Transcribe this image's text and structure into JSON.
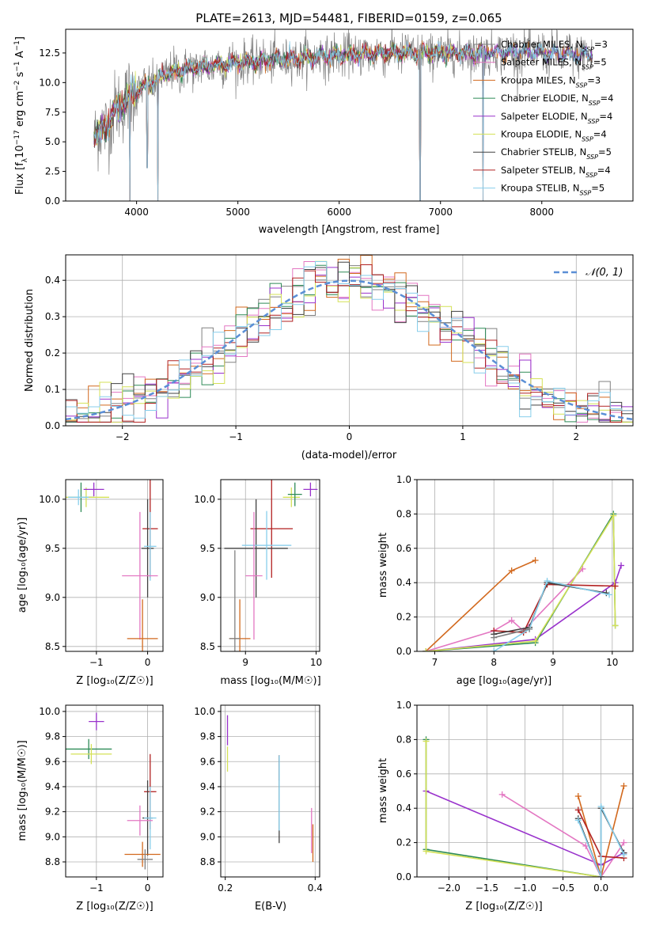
{
  "colors": {
    "Chabrier MILES": "#808080",
    "Salpeter MILES": "#e377c2",
    "Kroupa MILES": "#d2691e",
    "Chabrier ELODIE": "#2e8b57",
    "Salpeter ELODIE": "#9932cc",
    "Kroupa ELODIE": "#d4e157",
    "Chabrier STELIB": "#404040",
    "Salpeter STELIB": "#b22222",
    "Kroupa STELIB": "#87ceeb",
    "gaussian": "#5b8fd6"
  },
  "chart_data": [
    {
      "type": "line",
      "title": "PLATE=2613, MJD=54481, FIBERID=0159, z=0.065",
      "xlabel": "wavelength [Angstrom, rest frame]",
      "ylabel_parts": [
        "Flux [f",
        "λ",
        "10",
        "−17",
        " erg cm",
        "−2",
        " s",
        "−1",
        " A",
        "−1",
        "]"
      ],
      "xlim": [
        3300,
        8900
      ],
      "ylim": [
        0,
        14.5
      ],
      "xticks": [
        4000,
        5000,
        6000,
        7000,
        8000
      ],
      "xtick_labels": [
        "4000",
        "5000",
        "6000",
        "7000",
        "8000"
      ],
      "yticks": [
        0,
        2.5,
        5,
        7.5,
        10,
        12.5
      ],
      "ytick_labels": [
        "0.0",
        "2.5",
        "5.0",
        "7.5",
        "10.0",
        "12.5"
      ],
      "grid": false,
      "legend_position": "right",
      "legend": [
        {
          "model": "Chabrier MILES",
          "label": "Chabrier MILES, N",
          "sub": "SSP",
          "tail": "=3"
        },
        {
          "model": "Salpeter MILES",
          "label": "Salpeter MILES, N",
          "sub": "SSP",
          "tail": "=5"
        },
        {
          "model": "Kroupa MILES",
          "label": "Kroupa MILES, N",
          "sub": "SSP",
          "tail": "=3"
        },
        {
          "model": "Chabrier ELODIE",
          "label": "Chabrier ELODIE, N",
          "sub": "SSP",
          "tail": "=4"
        },
        {
          "model": "Salpeter ELODIE",
          "label": "Salpeter ELODIE, N",
          "sub": "SSP",
          "tail": "=4"
        },
        {
          "model": "Kroupa ELODIE",
          "label": "Kroupa ELODIE, N",
          "sub": "SSP",
          "tail": "=4"
        },
        {
          "model": "Chabrier STELIB",
          "label": "Chabrier STELIB, N",
          "sub": "SSP",
          "tail": "=5"
        },
        {
          "model": "Salpeter STELIB",
          "label": "Salpeter STELIB, N",
          "sub": "SSP",
          "tail": "=4"
        },
        {
          "model": "Kroupa STELIB",
          "label": "Kroupa STELIB, N",
          "sub": "SSP",
          "tail": "=5"
        }
      ],
      "continuum": {
        "x": [
          3580,
          3700,
          3800,
          3950,
          4100,
          4300,
          4600,
          5000,
          5500,
          6000,
          6500,
          7000,
          7400,
          7700,
          8000,
          8500
        ],
        "y": [
          5.5,
          6.3,
          7.8,
          9.0,
          9.8,
          10.8,
          11.3,
          11.7,
          12.0,
          12.3,
          12.5,
          12.5,
          12.5,
          12.6,
          12.5,
          12.3
        ]
      },
      "absorption_features": [
        {
          "x": 3934,
          "depth_to": 0.0
        },
        {
          "x": 4210,
          "depth_to": 0.0
        },
        {
          "x": 6800,
          "depth_to": 0.0
        },
        {
          "x": 7420,
          "depth_to": 0.0
        },
        {
          "x": 4105,
          "depth_to": 2.8
        }
      ]
    },
    {
      "type": "bar",
      "xlabel": "(data-model)/error",
      "ylabel": "Normed distribution",
      "xlim": [
        -2.5,
        2.5
      ],
      "ylim": [
        0,
        0.47
      ],
      "xticks": [
        -2,
        -1,
        0,
        1,
        2
      ],
      "xtick_labels": [
        "−2",
        "−1",
        "0",
        "1",
        "2"
      ],
      "yticks": [
        0,
        0.1,
        0.2,
        0.3,
        0.4
      ],
      "ytick_labels": [
        "0.0",
        "0.1",
        "0.2",
        "0.3",
        "0.4"
      ],
      "grid": true,
      "legend_position": "top-right",
      "legend_label": "𝒩(0, 1)",
      "bin_width": 0.1,
      "bin_start": -2.5,
      "histogram_model_order": [
        "Chabrier MILES",
        "Salpeter MILES",
        "Kroupa MILES",
        "Chabrier ELODIE",
        "Salpeter ELODIE",
        "Kroupa ELODIE",
        "Chabrier STELIB",
        "Salpeter STELIB",
        "Kroupa STELIB"
      ]
    },
    {
      "type": "scatter",
      "xlabel": "Z [log₁₀(Z/Z☉)]",
      "ylabel": "age  [log₁₀(age/yr)]",
      "xlim": [
        -1.6,
        0.3
      ],
      "ylim": [
        8.45,
        10.2
      ],
      "xticks": [
        -1,
        0
      ],
      "xtick_labels": [
        "−1",
        "0"
      ],
      "yticks": [
        8.5,
        9.0,
        9.5,
        10.0
      ],
      "ytick_labels": [
        "8.5",
        "9.0",
        "9.5",
        "10.0"
      ],
      "grid": true,
      "points": [
        {
          "model": "Chabrier ELODIE",
          "x": -1.3,
          "y": 10.02,
          "xerr": 0.25,
          "yerr": 0.15
        },
        {
          "model": "Kroupa ELODIE",
          "x": -1.2,
          "y": 10.02,
          "xerr": 0.45,
          "yerr": 0.1
        },
        {
          "model": "Salpeter ELODIE",
          "x": -1.05,
          "y": 10.1,
          "xerr": 0.2,
          "yerr": 0.07
        },
        {
          "model": "Kroupa STELIB",
          "x": -1.35,
          "y": 10.02,
          "xerr": 0.2,
          "yerr": 0.08
        },
        {
          "model": "Salpeter STELIB",
          "x": 0.05,
          "y": 9.7,
          "xerr": 0.15,
          "yerr": 0.5
        },
        {
          "model": "Chabrier STELIB",
          "x": 0.0,
          "y": 9.5,
          "xerr": 0.12,
          "yerr": 0.5
        },
        {
          "model": "Kroupa STELIB",
          "x": 0.05,
          "y": 9.52,
          "xerr": 0.12,
          "yerr": 0.35
        },
        {
          "model": "Salpeter MILES",
          "x": -0.15,
          "y": 9.22,
          "xerr": 0.35,
          "yerr": 0.65
        },
        {
          "model": "Kroupa MILES",
          "x": -0.1,
          "y": 8.58,
          "xerr": 0.3,
          "yerr": 0.4
        }
      ]
    },
    {
      "type": "scatter",
      "xlabel": "mass [log₁₀(M/M☉)]",
      "ylabel": "",
      "xlim": [
        8.65,
        10.05
      ],
      "ylim": [
        8.45,
        10.2
      ],
      "xticks": [
        9,
        10
      ],
      "xtick_labels": [
        "9",
        "10"
      ],
      "yticks": [
        8.5,
        9.0,
        9.5,
        10.0
      ],
      "ytick_labels": [
        "8.5",
        "9.0",
        "9.5",
        "10.0"
      ],
      "grid": true,
      "points": [
        {
          "model": "Kroupa ELODIE",
          "x": 9.65,
          "y": 10.02,
          "xerr": 0.12,
          "yerr": 0.1
        },
        {
          "model": "Chabrier ELODIE",
          "x": 9.7,
          "y": 10.05,
          "xerr": 0.1,
          "yerr": 0.12
        },
        {
          "model": "Salpeter ELODIE",
          "x": 9.92,
          "y": 10.1,
          "xerr": 0.1,
          "yerr": 0.07
        },
        {
          "model": "Salpeter STELIB",
          "x": 9.37,
          "y": 9.7,
          "xerr": 0.3,
          "yerr": 0.5
        },
        {
          "model": "Chabrier STELIB",
          "x": 9.15,
          "y": 9.5,
          "xerr": 0.45,
          "yerr": 0.5
        },
        {
          "model": "Kroupa STELIB",
          "x": 9.3,
          "y": 9.53,
          "xerr": 0.35,
          "yerr": 0.35
        },
        {
          "model": "Salpeter MILES",
          "x": 9.12,
          "y": 9.22,
          "xerr": 0.12,
          "yerr": 0.65
        },
        {
          "model": "Kroupa MILES",
          "x": 8.92,
          "y": 8.58,
          "xerr": 0.15,
          "yerr": 0.4
        },
        {
          "model": "Chabrier MILES",
          "x": 8.85,
          "y": 8.58,
          "xerr": 0.08,
          "yerr": 0.9
        }
      ]
    },
    {
      "type": "line",
      "xlabel": "age  [log₁₀(age/yr)]",
      "ylabel": "mass weight",
      "xlim": [
        6.7,
        10.35
      ],
      "ylim": [
        0,
        1.0
      ],
      "xticks": [
        7,
        8,
        9,
        10
      ],
      "xtick_labels": [
        "7",
        "8",
        "9",
        "10"
      ],
      "yticks": [
        0,
        0.2,
        0.4,
        0.6,
        0.8,
        1.0
      ],
      "ytick_labels": [
        "0.0",
        "0.2",
        "0.4",
        "0.6",
        "0.8",
        "1.0"
      ],
      "grid": true,
      "series": [
        {
          "model": "Kroupa MILES",
          "x": [
            6.85,
            8.3,
            8.7
          ],
          "y": [
            0.0,
            0.47,
            0.53
          ]
        },
        {
          "model": "Salpeter MILES",
          "x": [
            6.85,
            8.0,
            8.3,
            8.5,
            9.5
          ],
          "y": [
            0.0,
            0.12,
            0.18,
            0.12,
            0.48
          ]
        },
        {
          "model": "Salpeter ELODIE",
          "x": [
            6.85,
            8.7,
            10.05,
            10.15
          ],
          "y": [
            0.0,
            0.07,
            0.4,
            0.5
          ]
        },
        {
          "model": "Chabrier ELODIE",
          "x": [
            6.85,
            8.7,
            10.02,
            10.05
          ],
          "y": [
            0.0,
            0.05,
            0.8,
            0.15
          ]
        },
        {
          "model": "Kroupa ELODIE",
          "x": [
            6.85,
            8.7,
            10.02,
            10.05
          ],
          "y": [
            0.0,
            0.06,
            0.79,
            0.15
          ]
        },
        {
          "model": "Salpeter STELIB",
          "x": [
            8.0,
            8.5,
            8.9,
            10.05
          ],
          "y": [
            0.12,
            0.11,
            0.39,
            0.38
          ]
        },
        {
          "model": "Chabrier STELIB",
          "x": [
            8.0,
            8.6,
            8.9,
            9.9
          ],
          "y": [
            0.1,
            0.14,
            0.4,
            0.34
          ]
        },
        {
          "model": "Kroupa STELIB",
          "x": [
            8.0,
            8.6,
            8.9,
            9.95
          ],
          "y": [
            0.0,
            0.13,
            0.41,
            0.33
          ]
        },
        {
          "model": "Chabrier MILES",
          "x": [
            8.0,
            8.6
          ],
          "y": [
            0.08,
            0.13
          ]
        }
      ]
    },
    {
      "type": "scatter",
      "xlabel": "Z [log₁₀(Z/Z☉)]",
      "ylabel": "mass [log₁₀(M/M☉)]",
      "xlim": [
        -1.6,
        0.3
      ],
      "ylim": [
        8.68,
        10.05
      ],
      "xticks": [
        -1,
        0
      ],
      "xtick_labels": [
        "−1",
        "0"
      ],
      "yticks": [
        8.8,
        9.0,
        9.2,
        9.4,
        9.6,
        9.8,
        10.0
      ],
      "ytick_labels": [
        "8.8",
        "9.0",
        "9.2",
        "9.4",
        "9.6",
        "9.8",
        "10.0"
      ],
      "grid": true,
      "points": [
        {
          "model": "Chabrier ELODIE",
          "x": -1.15,
          "y": 9.7,
          "xerr": 0.45,
          "yerr": 0.08
        },
        {
          "model": "Kroupa ELODIE",
          "x": -1.1,
          "y": 9.66,
          "xerr": 0.4,
          "yerr": 0.08
        },
        {
          "model": "Salpeter ELODIE",
          "x": -1.0,
          "y": 9.92,
          "xerr": 0.15,
          "yerr": 0.07
        },
        {
          "model": "Salpeter STELIB",
          "x": 0.05,
          "y": 9.36,
          "xerr": 0.12,
          "yerr": 0.3
        },
        {
          "model": "Chabrier STELIB",
          "x": 0.0,
          "y": 9.15,
          "xerr": 0.1,
          "yerr": 0.3
        },
        {
          "model": "Kroupa STELIB",
          "x": 0.05,
          "y": 9.15,
          "xerr": 0.12,
          "yerr": 0.25
        },
        {
          "model": "Salpeter MILES",
          "x": -0.15,
          "y": 9.13,
          "xerr": 0.25,
          "yerr": 0.12
        },
        {
          "model": "Kroupa MILES",
          "x": -0.1,
          "y": 8.86,
          "xerr": 0.35,
          "yerr": 0.1
        },
        {
          "model": "Chabrier MILES",
          "x": -0.05,
          "y": 8.82,
          "xerr": 0.15,
          "yerr": 0.08
        }
      ]
    },
    {
      "type": "scatter",
      "xlabel": "E(B-V)",
      "ylabel": "",
      "xlim": [
        0.19,
        0.41
      ],
      "ylim": [
        8.68,
        10.05
      ],
      "xticks": [
        0.2,
        0.4
      ],
      "xtick_labels": [
        "0.2",
        "0.4"
      ],
      "yticks": [
        8.8,
        9.0,
        9.2,
        9.4,
        9.6,
        9.8,
        10.0
      ],
      "ytick_labels": [
        "8.8",
        "9.0",
        "9.2",
        "9.4",
        "9.6",
        "9.8",
        "10.0"
      ],
      "grid": true,
      "points": [
        {
          "model": "Salpeter ELODIE",
          "x": 0.205,
          "y": 9.85,
          "xerr": 0.0,
          "yerr": 0.12
        },
        {
          "model": "Kroupa ELODIE",
          "x": 0.205,
          "y": 9.62,
          "xerr": 0.0,
          "yerr": 0.1
        },
        {
          "model": "Salpeter STELIB",
          "x": 0.32,
          "y": 9.55,
          "xerr": 0.0,
          "yerr": 0.1
        },
        {
          "model": "Chabrier STELIB",
          "x": 0.32,
          "y": 9.3,
          "xerr": 0.0,
          "yerr": 0.35
        },
        {
          "model": "Kroupa STELIB",
          "x": 0.32,
          "y": 9.35,
          "xerr": 0.0,
          "yerr": 0.3
        },
        {
          "model": "Salpeter MILES",
          "x": 0.392,
          "y": 9.05,
          "xerr": 0.0,
          "yerr": 0.18
        },
        {
          "model": "Kroupa MILES",
          "x": 0.395,
          "y": 8.95,
          "xerr": 0.0,
          "yerr": 0.15
        }
      ]
    },
    {
      "type": "line",
      "xlabel": "Z [log₁₀(Z/Z☉)]",
      "ylabel": "mass weight",
      "xlim": [
        -2.42,
        0.42
      ],
      "ylim": [
        0,
        1.0
      ],
      "xticks": [
        -2.0,
        -1.5,
        -1.0,
        -0.5,
        0.0
      ],
      "xtick_labels": [
        "−2.0",
        "−1.5",
        "−1.0",
        "−0.5",
        "0.0"
      ],
      "yticks": [
        0,
        0.2,
        0.4,
        0.6,
        0.8,
        1.0
      ],
      "ytick_labels": [
        "0.0",
        "0.2",
        "0.4",
        "0.6",
        "0.8",
        "1.0"
      ],
      "grid": true,
      "series": [
        {
          "model": "Salpeter ELODIE",
          "x": [
            -2.3,
            0.0,
            0.3
          ],
          "y": [
            0.5,
            0.07,
            0.14
          ]
        },
        {
          "model": "Chabrier ELODIE",
          "x": [
            -2.3,
            -2.3,
            0.0
          ],
          "y": [
            0.8,
            0.16,
            0.0
          ]
        },
        {
          "model": "Kroupa ELODIE",
          "x": [
            -2.3,
            -2.3,
            0.0
          ],
          "y": [
            0.79,
            0.15,
            0.0
          ]
        },
        {
          "model": "Salpeter MILES",
          "x": [
            -1.3,
            -0.2,
            0.0,
            0.3
          ],
          "y": [
            0.48,
            0.18,
            0.0,
            0.2
          ]
        },
        {
          "model": "Kroupa MILES",
          "x": [
            -0.3,
            0.0,
            0.3
          ],
          "y": [
            0.47,
            0.0,
            0.53
          ]
        },
        {
          "model": "Salpeter STELIB",
          "x": [
            -0.3,
            0.0,
            0.3
          ],
          "y": [
            0.39,
            0.12,
            0.11
          ]
        },
        {
          "model": "Chabrier STELIB",
          "x": [
            -0.3,
            0.0,
            0.0,
            0.3
          ],
          "y": [
            0.34,
            0.0,
            0.4,
            0.14
          ]
        },
        {
          "model": "Kroupa STELIB",
          "x": [
            -0.3,
            0.0,
            0.0,
            0.3
          ],
          "y": [
            0.33,
            0.0,
            0.41,
            0.13
          ]
        }
      ]
    }
  ]
}
